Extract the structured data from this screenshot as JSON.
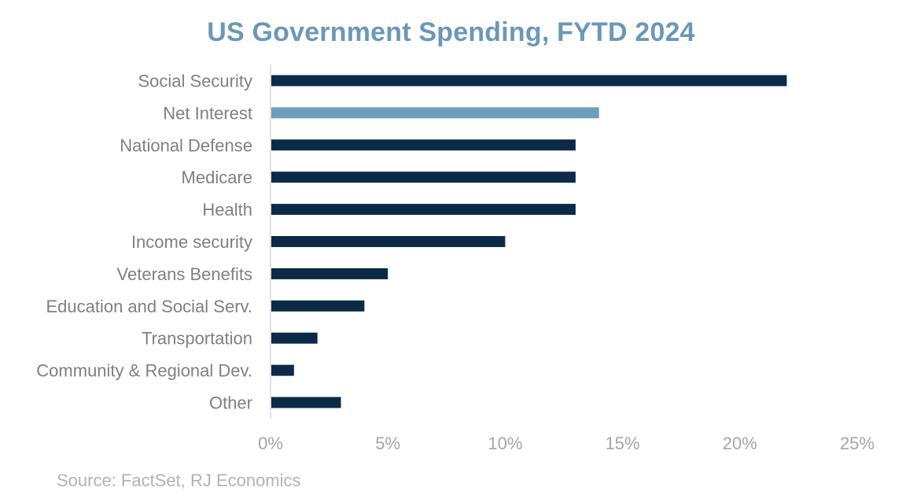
{
  "chart_data": {
    "type": "bar",
    "orientation": "horizontal",
    "title": "US Government Spending, FYTD 2024",
    "source": "Source: FactSet, RJ Economics",
    "categories": [
      "Social Security",
      "Net Interest",
      "National Defense",
      "Medicare",
      "Health",
      "Income security",
      "Veterans Benefits",
      "Education and Social Serv.",
      "Transportation",
      "Community & Regional Dev.",
      "Other"
    ],
    "values": [
      22,
      14,
      13,
      13,
      13,
      10,
      5,
      4,
      2,
      1,
      3
    ],
    "highlight_category": "Net Interest",
    "xlim": [
      0,
      25
    ],
    "xticks": [
      0,
      5,
      10,
      15,
      20,
      25
    ],
    "xtick_labels": [
      "0%",
      "5%",
      "10%",
      "15%",
      "20%",
      "25%"
    ],
    "xlabel": "",
    "ylabel": "",
    "grid": false,
    "colors": {
      "bar": "#0b2a48",
      "highlight": "#6d9ebe",
      "title": "#6b98b8"
    }
  }
}
